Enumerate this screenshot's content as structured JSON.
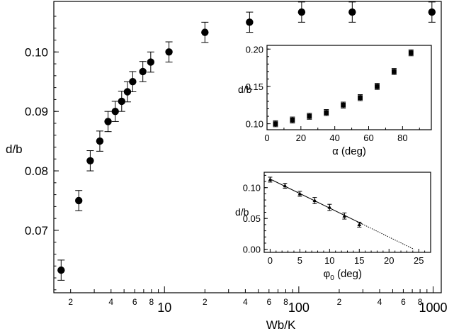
{
  "chart_data": [
    {
      "id": "main",
      "type": "scatter",
      "xlabel": "Wb/K",
      "ylabel": "d/b",
      "xscale": "log",
      "xlim": [
        1.5,
        1150
      ],
      "ylim": [
        0.0595,
        0.1085
      ],
      "yticks": [
        0.07,
        0.08,
        0.09,
        0.1
      ],
      "ytick_labels": [
        "0.07",
        "0.08",
        "0.09",
        "0.10"
      ],
      "x_major_ticks": [
        10,
        100,
        1000
      ],
      "x_major_labels": [
        "10",
        "100",
        "1000"
      ],
      "x_minor_ticks": [
        2,
        3,
        4,
        5,
        6,
        7,
        8,
        9,
        20,
        30,
        40,
        50,
        60,
        70,
        80,
        90,
        200,
        300,
        400,
        500,
        600,
        700,
        800,
        900
      ],
      "x_minor_labels": [
        "2",
        "",
        "4",
        "",
        "6",
        "",
        "8",
        "",
        "2",
        "",
        "4",
        "",
        "6",
        "",
        "8",
        "",
        "2",
        "",
        "4",
        "",
        "6",
        "",
        "8",
        ""
      ],
      "marker": "circle",
      "error_bars": true,
      "points": [
        {
          "x": 1.7,
          "y": 0.0633,
          "err": 0.0017
        },
        {
          "x": 2.3,
          "y": 0.075,
          "err": 0.0017
        },
        {
          "x": 2.8,
          "y": 0.0817,
          "err": 0.0017
        },
        {
          "x": 3.3,
          "y": 0.085,
          "err": 0.0017
        },
        {
          "x": 3.8,
          "y": 0.0883,
          "err": 0.0017
        },
        {
          "x": 4.3,
          "y": 0.09,
          "err": 0.0017
        },
        {
          "x": 4.8,
          "y": 0.0917,
          "err": 0.0017
        },
        {
          "x": 5.3,
          "y": 0.0933,
          "err": 0.0017
        },
        {
          "x": 5.8,
          "y": 0.095,
          "err": 0.0017
        },
        {
          "x": 6.9,
          "y": 0.0967,
          "err": 0.0017
        },
        {
          "x": 7.9,
          "y": 0.0983,
          "err": 0.0017
        },
        {
          "x": 10.8,
          "y": 0.1,
          "err": 0.0017
        },
        {
          "x": 20,
          "y": 0.1033,
          "err": 0.0017
        },
        {
          "x": 43,
          "y": 0.105,
          "err": 0.0017
        },
        {
          "x": 105,
          "y": 0.1067,
          "err": 0.0017
        },
        {
          "x": 250,
          "y": 0.1067,
          "err": 0.0017
        },
        {
          "x": 980,
          "y": 0.1067,
          "err": 0.0017
        }
      ]
    },
    {
      "id": "inset-alpha",
      "type": "scatter",
      "xlabel": "α (deg)",
      "ylabel": "d/b",
      "xlim": [
        0,
        97
      ],
      "ylim": [
        0.092,
        0.205
      ],
      "xticks": [
        0,
        20,
        40,
        60,
        80
      ],
      "xtick_labels": [
        "0",
        "20",
        "40",
        "60",
        "80"
      ],
      "yticks": [
        0.1,
        0.15,
        0.2
      ],
      "ytick_labels": [
        "0.10",
        "0.15",
        "0.20"
      ],
      "marker": "square",
      "error_bars": true,
      "points": [
        {
          "x": 5,
          "y": 0.1,
          "err": 0.004
        },
        {
          "x": 15,
          "y": 0.105,
          "err": 0.004
        },
        {
          "x": 25,
          "y": 0.11,
          "err": 0.004
        },
        {
          "x": 35,
          "y": 0.115,
          "err": 0.004
        },
        {
          "x": 45,
          "y": 0.125,
          "err": 0.004
        },
        {
          "x": 55,
          "y": 0.135,
          "err": 0.004
        },
        {
          "x": 65,
          "y": 0.15,
          "err": 0.004
        },
        {
          "x": 75,
          "y": 0.17,
          "err": 0.004
        },
        {
          "x": 85,
          "y": 0.195,
          "err": 0.004
        }
      ]
    },
    {
      "id": "inset-phi",
      "type": "scatter",
      "xlabel": "φ0 (deg)",
      "xlabel_parts": {
        "symbol": "φ",
        "subscript": "0",
        "rest": " (deg)"
      },
      "ylabel": "d/b",
      "xlim": [
        -1,
        27
      ],
      "ylim": [
        -0.005,
        0.125
      ],
      "xticks": [
        0,
        5,
        10,
        15,
        20,
        25
      ],
      "xtick_labels": [
        "0",
        "5",
        "10",
        "15",
        "20",
        "25"
      ],
      "yticks": [
        0.0,
        0.05,
        0.1
      ],
      "ytick_labels": [
        "0.00",
        "0.05",
        "0.10"
      ],
      "marker": "triangle",
      "error_bars": true,
      "points": [
        {
          "x": 0,
          "y": 0.113,
          "err": 0.004
        },
        {
          "x": 2.5,
          "y": 0.103,
          "err": 0.004
        },
        {
          "x": 5,
          "y": 0.09,
          "err": 0.004
        },
        {
          "x": 7.5,
          "y": 0.079,
          "err": 0.005
        },
        {
          "x": 10,
          "y": 0.068,
          "err": 0.005
        },
        {
          "x": 12.5,
          "y": 0.054,
          "err": 0.005
        },
        {
          "x": 15,
          "y": 0.04,
          "err": 0.004
        }
      ],
      "fit_line": {
        "x0": 0,
        "y0": 0.114,
        "x1": 24.2,
        "y1": 0.0,
        "solid_until_x": 15.5
      }
    }
  ]
}
